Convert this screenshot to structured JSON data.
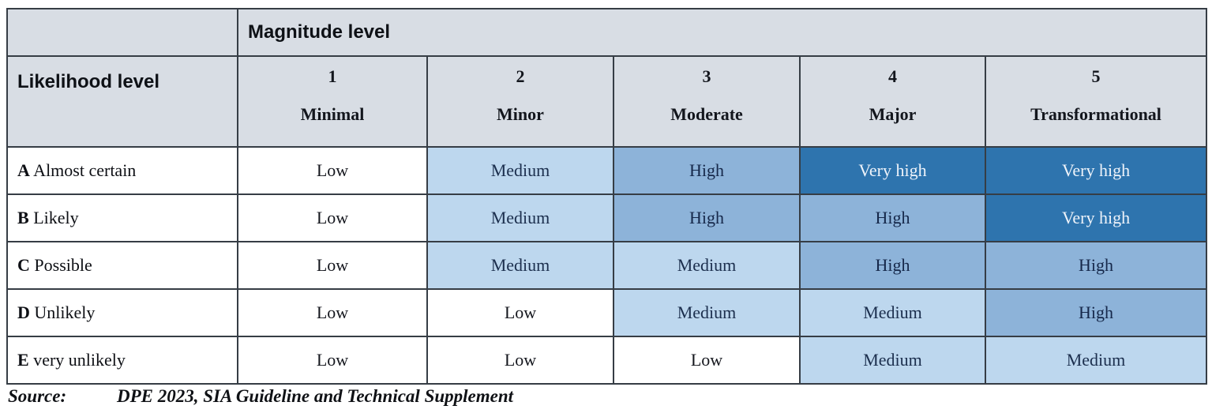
{
  "colors": {
    "header_bg": "#d8dde4",
    "medium": "#bdd7ee",
    "high": "#8db3d9",
    "very_high": "#2e74ae",
    "border": "#363d45"
  },
  "table": {
    "magnitude_header": "Magnitude level",
    "likelihood_header": "Likelihood level",
    "columns": [
      {
        "number": "1",
        "name": "Minimal"
      },
      {
        "number": "2",
        "name": "Minor"
      },
      {
        "number": "3",
        "name": "Moderate"
      },
      {
        "number": "4",
        "name": "Major"
      },
      {
        "number": "5",
        "name": "Transformational"
      }
    ],
    "rows": [
      {
        "key": "A",
        "label": "Almost certain",
        "cells": [
          {
            "text": "Low",
            "level": "low"
          },
          {
            "text": "Medium",
            "level": "medium"
          },
          {
            "text": "High",
            "level": "high"
          },
          {
            "text": "Very high",
            "level": "very-high"
          },
          {
            "text": "Very high",
            "level": "very-high"
          }
        ]
      },
      {
        "key": "B",
        "label": "Likely",
        "cells": [
          {
            "text": "Low",
            "level": "low"
          },
          {
            "text": "Medium",
            "level": "medium"
          },
          {
            "text": "High",
            "level": "high"
          },
          {
            "text": "High",
            "level": "high"
          },
          {
            "text": "Very high",
            "level": "very-high"
          }
        ]
      },
      {
        "key": "C",
        "label": "Possible",
        "cells": [
          {
            "text": "Low",
            "level": "low"
          },
          {
            "text": "Medium",
            "level": "medium"
          },
          {
            "text": "Medium",
            "level": "medium"
          },
          {
            "text": "High",
            "level": "high"
          },
          {
            "text": "High",
            "level": "high"
          }
        ]
      },
      {
        "key": "D",
        "label": "Unlikely",
        "cells": [
          {
            "text": "Low",
            "level": "low"
          },
          {
            "text": "Low",
            "level": "low"
          },
          {
            "text": "Medium",
            "level": "medium"
          },
          {
            "text": "Medium",
            "level": "medium"
          },
          {
            "text": "High",
            "level": "high"
          }
        ]
      },
      {
        "key": "E",
        "label": "very unlikely",
        "cells": [
          {
            "text": "Low",
            "level": "low"
          },
          {
            "text": "Low",
            "level": "low"
          },
          {
            "text": "Low",
            "level": "low"
          },
          {
            "text": "Medium",
            "level": "medium"
          },
          {
            "text": "Medium",
            "level": "medium"
          }
        ]
      }
    ]
  },
  "source": {
    "label": "Source:",
    "text": "DPE 2023, SIA Guideline and Technical Supplement"
  }
}
